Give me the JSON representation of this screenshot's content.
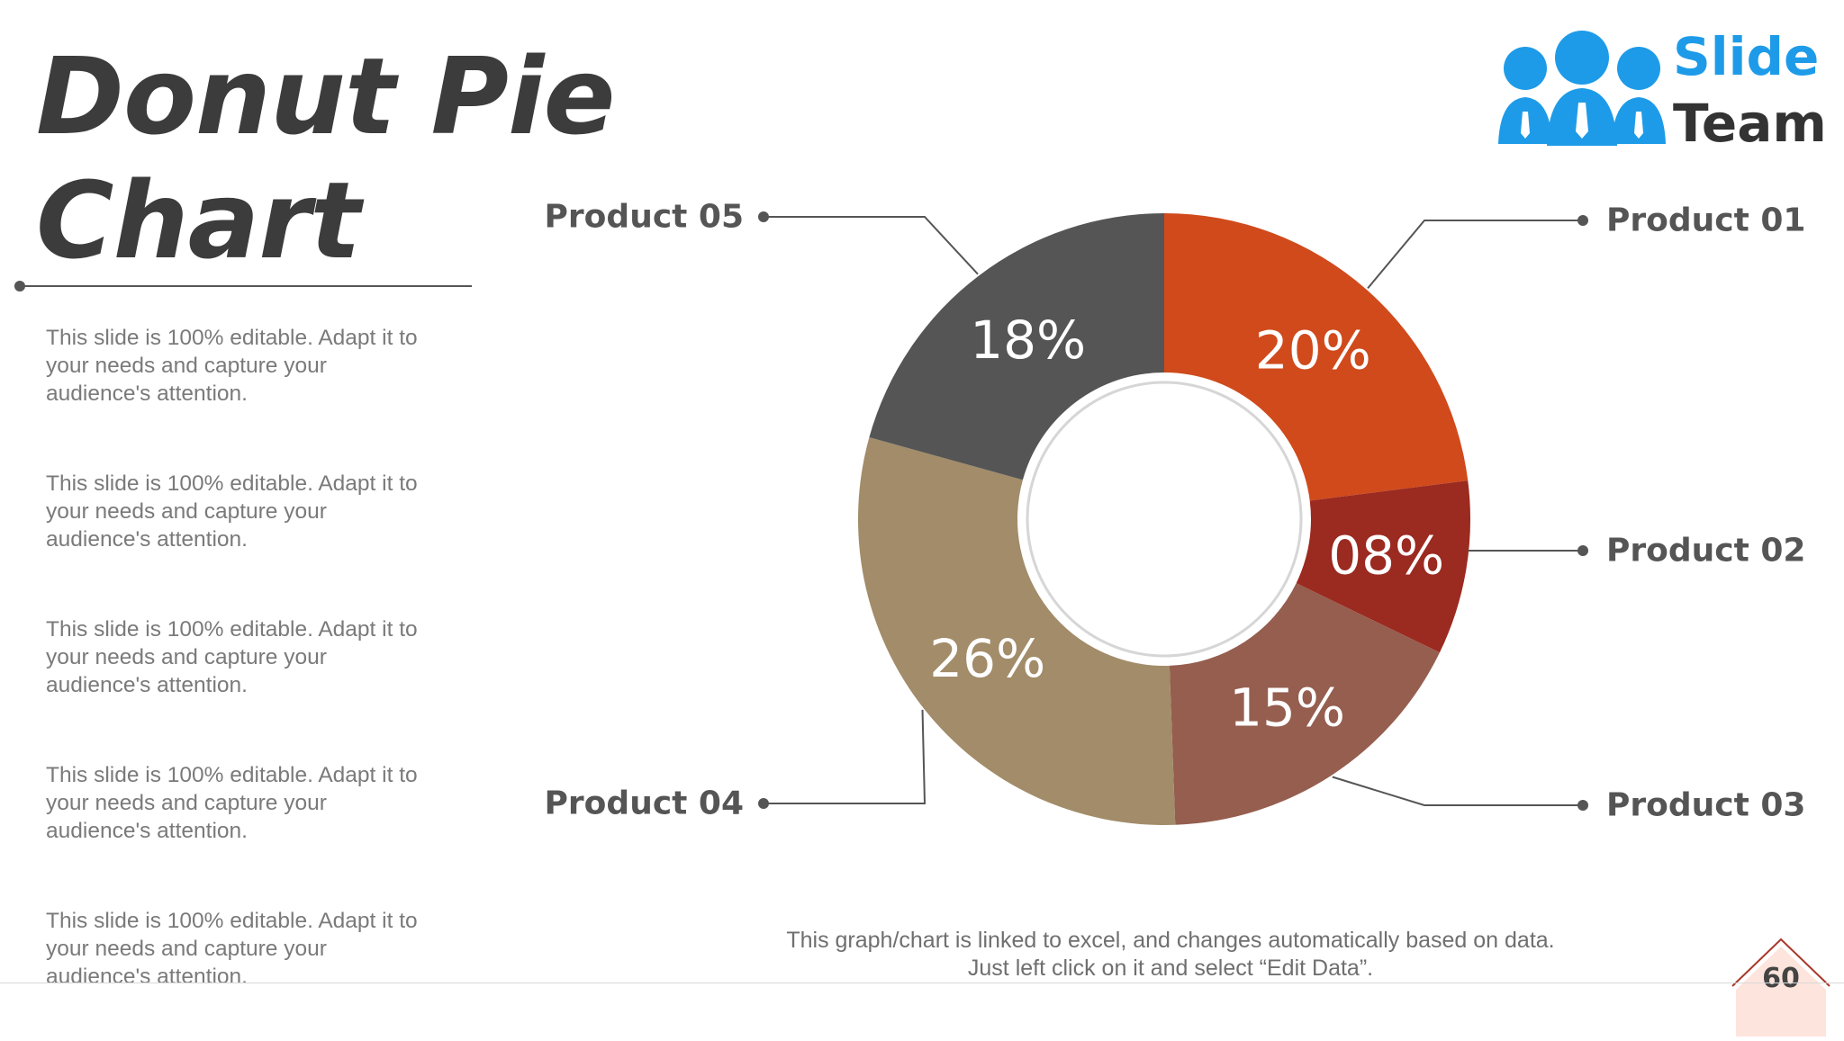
{
  "slide": {
    "title_line1": "Donut Pie",
    "title_line2": "Chart",
    "descriptions": [
      "This slide is 100% editable. Adapt it to your needs and capture your audience's attention.",
      "This slide is 100% editable. Adapt it to your needs and capture your audience's attention.",
      "This slide is 100% editable. Adapt it to your needs and capture your audience's attention.",
      "This slide is 100% editable. Adapt it to your needs and capture your audience's attention.",
      "This slide is 100% editable. Adapt it to your needs and capture your audience's attention."
    ],
    "footnote": "This graph/chart is linked to excel, and changes automatically based on data. Just left click on it and select “Edit Data”.",
    "page_number": "60"
  },
  "logo": {
    "word1": "Slide",
    "word2": "Team"
  },
  "colors": {
    "product_01": "#d04a1c",
    "product_02": "#9b2a20",
    "product_03": "#955e4f",
    "product_04": "#a28c69",
    "product_05": "#555555",
    "brand_blue": "#1e9be8"
  },
  "chart_data": {
    "type": "pie",
    "donut": true,
    "categories": [
      "Product 01",
      "Product 02",
      "Product 03",
      "Product 04",
      "Product 05"
    ],
    "values": [
      20,
      8,
      15,
      26,
      18
    ],
    "labels": [
      "20%",
      "08%",
      "15%",
      "26%",
      "18%"
    ],
    "colors": [
      "#d04a1c",
      "#9b2a20",
      "#955e4f",
      "#a28c69",
      "#555555"
    ]
  }
}
